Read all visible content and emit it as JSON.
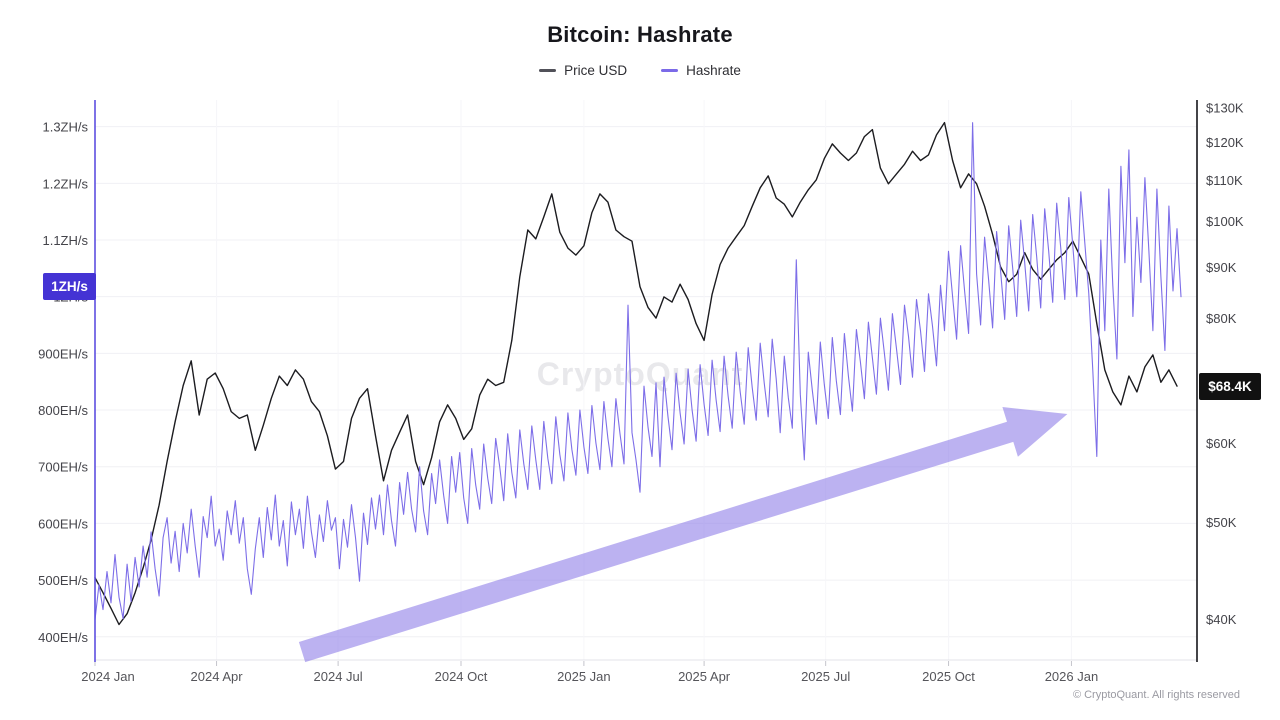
{
  "header": {
    "title": "Bitcoin: Hashrate"
  },
  "legend": {
    "items": [
      {
        "label": "Price USD",
        "color": "#515159"
      },
      {
        "label": "Hashrate",
        "color": "#7b6ae8"
      }
    ]
  },
  "watermark": {
    "text": "CryptoQuant"
  },
  "footer": {
    "copyright": "© CryptoQuant. All rights reserved"
  },
  "chart_data": {
    "type": "line",
    "title": "Bitcoin: Hashrate",
    "grid": "horizontal-faint",
    "legend_position": "top-center",
    "x_axis": {
      "start_date": "2024-01-01",
      "total_days": 825,
      "ticks": [
        {
          "label": "2024 Jan",
          "day": 0
        },
        {
          "label": "2024 Apr",
          "day": 91
        },
        {
          "label": "2024 Jul",
          "day": 182
        },
        {
          "label": "2024 Oct",
          "day": 274
        },
        {
          "label": "2025 Jan",
          "day": 366
        },
        {
          "label": "2025 Apr",
          "day": 456
        },
        {
          "label": "2025 Jul",
          "day": 547
        },
        {
          "label": "2025 Oct",
          "day": 639
        },
        {
          "label": "2026 Jan",
          "day": 731
        }
      ]
    },
    "y_left": {
      "label": "Hashrate",
      "unit": "EH/s",
      "scale": "linear",
      "min": 359,
      "max": 1347,
      "axis_color": "#5d4fe0",
      "badge": {
        "label": "1ZH/s",
        "value": 1000,
        "color": "#4433d4"
      },
      "ticks": [
        {
          "label": "1.3ZH/s",
          "value": 1300
        },
        {
          "label": "1.2ZH/s",
          "value": 1200
        },
        {
          "label": "1.1ZH/s",
          "value": 1100
        },
        {
          "label": "1ZH/s",
          "value": 1000
        },
        {
          "label": "900EH/s",
          "value": 900
        },
        {
          "label": "800EH/s",
          "value": 800
        },
        {
          "label": "700EH/s",
          "value": 700
        },
        {
          "label": "600EH/s",
          "value": 600
        },
        {
          "label": "500EH/s",
          "value": 500
        },
        {
          "label": "400EH/s",
          "value": 400
        }
      ]
    },
    "y_right": {
      "label": "Price USD",
      "unit": "USD thousands",
      "scale": "log",
      "min": 36.4,
      "max": 132.2,
      "axis_color": "#16161a",
      "badge": {
        "label": "$68.4K",
        "value": 68.4,
        "color": "#111111"
      },
      "ticks": [
        {
          "label": "$130K",
          "value": 130
        },
        {
          "label": "$120K",
          "value": 120
        },
        {
          "label": "$110K",
          "value": 110
        },
        {
          "label": "$100K",
          "value": 100
        },
        {
          "label": "$90K",
          "value": 90
        },
        {
          "label": "$80K",
          "value": 80
        },
        {
          "label": "$60K",
          "value": 60
        },
        {
          "label": "$50K",
          "value": 50
        },
        {
          "label": "$40K",
          "value": 40
        }
      ]
    },
    "series": [
      {
        "name": "Price USD",
        "axis": "right",
        "color": "#1c1c20",
        "width": 1.4,
        "step_days": 6,
        "values": [
          44,
          42.5,
          41,
          39.5,
          40.5,
          42.5,
          45,
          48,
          52,
          57.5,
          63,
          68.5,
          72.5,
          64,
          69.5,
          70.5,
          68,
          64.5,
          63.5,
          64,
          59,
          62.5,
          66.5,
          70,
          68.5,
          71,
          69.5,
          66,
          64.5,
          61,
          56.5,
          57.5,
          63.5,
          66.5,
          68,
          61,
          55,
          59,
          61.5,
          64,
          57.5,
          54.5,
          58,
          63,
          65.5,
          63.5,
          60.5,
          62,
          67,
          69.5,
          68.5,
          69,
          76,
          88,
          98,
          96,
          101,
          106.5,
          97.5,
          94,
          92.5,
          94.5,
          102,
          106.5,
          104.5,
          98,
          96.5,
          95.5,
          86,
          82,
          80,
          84,
          83,
          86.5,
          83.5,
          79,
          76,
          84.5,
          90.5,
          94,
          96.5,
          99,
          103.5,
          108,
          111,
          105.5,
          104,
          101,
          104.5,
          107.5,
          110,
          115.5,
          119.5,
          117,
          115,
          117,
          121.5,
          123.5,
          113,
          109,
          111.5,
          114,
          117.5,
          115,
          116.5,
          122,
          125.5,
          115,
          108,
          111.5,
          109,
          103.5,
          97,
          90,
          87,
          88.5,
          93,
          89.5,
          87.5,
          89.5,
          91.5,
          93,
          95.5,
          92,
          88.5,
          79,
          71,
          67.5,
          65.5,
          70,
          67.5,
          71.5,
          73.5,
          69,
          71,
          68.4
        ]
      },
      {
        "name": "Hashrate",
        "axis": "left",
        "color": "#7d6ee8",
        "width": 1.1,
        "step_days": 3,
        "values": [
          430,
          492,
          448,
          515,
          460,
          545,
          470,
          432,
          528,
          462,
          540,
          488,
          560,
          505,
          585,
          520,
          472,
          575,
          610,
          530,
          586,
          515,
          600,
          548,
          625,
          560,
          505,
          612,
          575,
          648,
          560,
          590,
          535,
          622,
          580,
          640,
          565,
          610,
          520,
          475,
          555,
          610,
          540,
          628,
          571,
          650,
          560,
          605,
          525,
          638,
          580,
          625,
          556,
          648,
          585,
          540,
          615,
          568,
          640,
          588,
          610,
          520,
          607,
          558,
          633,
          575,
          498,
          618,
          563,
          645,
          590,
          650,
          580,
          668,
          605,
          560,
          672,
          616,
          690,
          625,
          585,
          700,
          622,
          580,
          688,
          635,
          712,
          650,
          600,
          718,
          655,
          725,
          645,
          600,
          732,
          668,
          625,
          740,
          680,
          635,
          750,
          700,
          640,
          758,
          690,
          645,
          765,
          705,
          660,
          772,
          712,
          660,
          780,
          715,
          670,
          788,
          722,
          675,
          795,
          730,
          685,
          800,
          735,
          688,
          808,
          742,
          695,
          815,
          750,
          700,
          820,
          758,
          705,
          985,
          760,
          712,
          655,
          842,
          770,
          718,
          848,
          700,
          858,
          788,
          730,
          865,
          795,
          740,
          872,
          800,
          745,
          880,
          810,
          755,
          888,
          818,
          762,
          895,
          825,
          768,
          902,
          832,
          775,
          910,
          840,
          782,
          918,
          848,
          788,
          925,
          855,
          760,
          895,
          822,
          768,
          1065,
          828,
          712,
          902,
          835,
          775,
          920,
          845,
          785,
          928,
          852,
          792,
          935,
          860,
          798,
          942,
          885,
          820,
          955,
          892,
          828,
          962,
          900,
          835,
          970,
          908,
          845,
          985,
          930,
          858,
          995,
          940,
          868,
          1005,
          948,
          878,
          1020,
          940,
          1080,
          1000,
          925,
          1090,
          1010,
          935,
          1307,
          1040,
          950,
          1105,
          1030,
          945,
          1115,
          1045,
          960,
          1125,
          1050,
          965,
          1135,
          1060,
          975,
          1145,
          1070,
          980,
          1155,
          1080,
          990,
          1165,
          1085,
          995,
          1175,
          1090,
          1000,
          1185,
          1095,
          1005,
          870,
          718,
          1100,
          940,
          1190,
          1020,
          890,
          1230,
          1060,
          1259,
          965,
          1140,
          1025,
          1210,
          1080,
          940,
          1190,
          1035,
          905,
          1160,
          1010,
          1120,
          1000
        ]
      }
    ],
    "annotations": [
      {
        "type": "arrow",
        "color": "#8f7fe8",
        "opacity": 0.6,
        "tail": {
          "day": 155,
          "eh": 373
        },
        "tip": {
          "day": 728,
          "eh": 793
        }
      }
    ]
  }
}
